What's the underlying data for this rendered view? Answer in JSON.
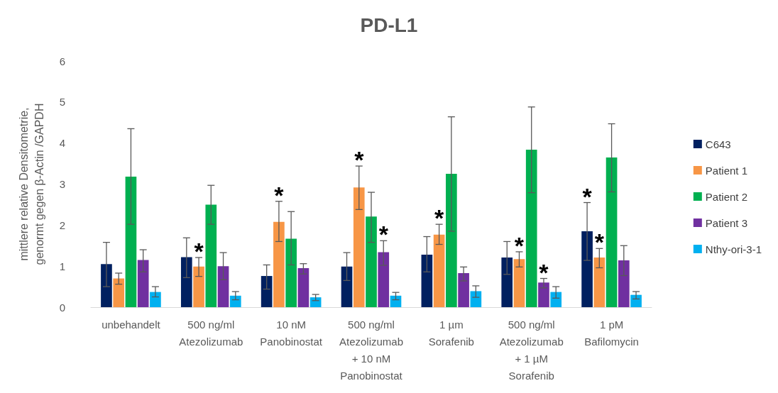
{
  "chart_data": {
    "type": "bar",
    "title": "PD-L1",
    "ylabel": "mittlere relative Densitometrie,\ngenormt gegen β-Actin /GAPDH",
    "categories": [
      "unbehandelt",
      "500 ng/ml\nAtezolizumab",
      "10 nM\nPanobinostat",
      "500 ng/ml\nAtezolizumab\n+ 10 nM\nPanobinostat",
      "1 µm\nSorafenib",
      "500 ng/ml\nAtezolizumab\n+ 1 µM\nSorafenib",
      "1 pM\nBafilomycin"
    ],
    "series": [
      {
        "name": "C643",
        "color": "#002060",
        "values": [
          1.05,
          1.22,
          0.76,
          0.99,
          1.28,
          1.21,
          1.85
        ],
        "errors": [
          [
            0.5,
            1.58
          ],
          [
            0.72,
            1.69
          ],
          [
            0.44,
            1.03
          ],
          [
            0.65,
            1.33
          ],
          [
            0.86,
            1.72
          ],
          [
            0.8,
            1.6
          ],
          [
            1.14,
            2.55
          ]
        ],
        "value_labels": [
          null,
          null,
          null,
          null,
          null,
          null,
          "*"
        ]
      },
      {
        "name": "Patient 1",
        "color": "#f79646",
        "values": [
          0.7,
          0.99,
          2.08,
          2.92,
          1.77,
          1.17,
          1.21
        ],
        "errors": [
          [
            0.56,
            0.83
          ],
          [
            0.75,
            1.21
          ],
          [
            1.6,
            2.58
          ],
          [
            2.38,
            3.44
          ],
          [
            1.53,
            2.02
          ],
          [
            0.98,
            1.35
          ],
          [
            0.96,
            1.43
          ]
        ],
        "value_labels": [
          null,
          "*",
          "*",
          "*",
          "*",
          "*",
          "*"
        ]
      },
      {
        "name": "Patient 2",
        "color": "#00b050",
        "values": [
          3.18,
          2.5,
          1.67,
          2.21,
          3.25,
          3.84,
          3.65
        ],
        "errors": [
          [
            2.02,
            4.35
          ],
          [
            2.02,
            2.97
          ],
          [
            1.03,
            2.33
          ],
          [
            1.58,
            2.8
          ],
          [
            1.85,
            4.64
          ],
          [
            2.79,
            4.88
          ],
          [
            2.81,
            4.47
          ]
        ]
      },
      {
        "name": "Patient 3",
        "color": "#7030a0",
        "values": [
          1.15,
          1.0,
          0.95,
          1.34,
          0.83,
          0.6,
          1.14
        ],
        "errors": [
          [
            0.86,
            1.4
          ],
          [
            0.67,
            1.33
          ],
          [
            0.81,
            1.06
          ],
          [
            1.02,
            1.62
          ],
          [
            0.64,
            0.98
          ],
          [
            0.47,
            0.7
          ],
          [
            0.77,
            1.5
          ]
        ],
        "value_labels": [
          null,
          null,
          null,
          "*",
          null,
          "*",
          null
        ]
      },
      {
        "name": "Nthy-ori-3-1",
        "color": "#00b0f0",
        "values": [
          0.37,
          0.28,
          0.24,
          0.28,
          0.39,
          0.37,
          0.3
        ],
        "errors": [
          [
            0.25,
            0.5
          ],
          [
            0.18,
            0.38
          ],
          [
            0.16,
            0.31
          ],
          [
            0.18,
            0.36
          ],
          [
            0.24,
            0.52
          ],
          [
            0.22,
            0.5
          ],
          [
            0.2,
            0.38
          ]
        ]
      }
    ],
    "ylim": [
      0,
      6
    ],
    "yticks": [
      0,
      1,
      2,
      3,
      4,
      5,
      6
    ],
    "grid": false,
    "legend": "right"
  }
}
